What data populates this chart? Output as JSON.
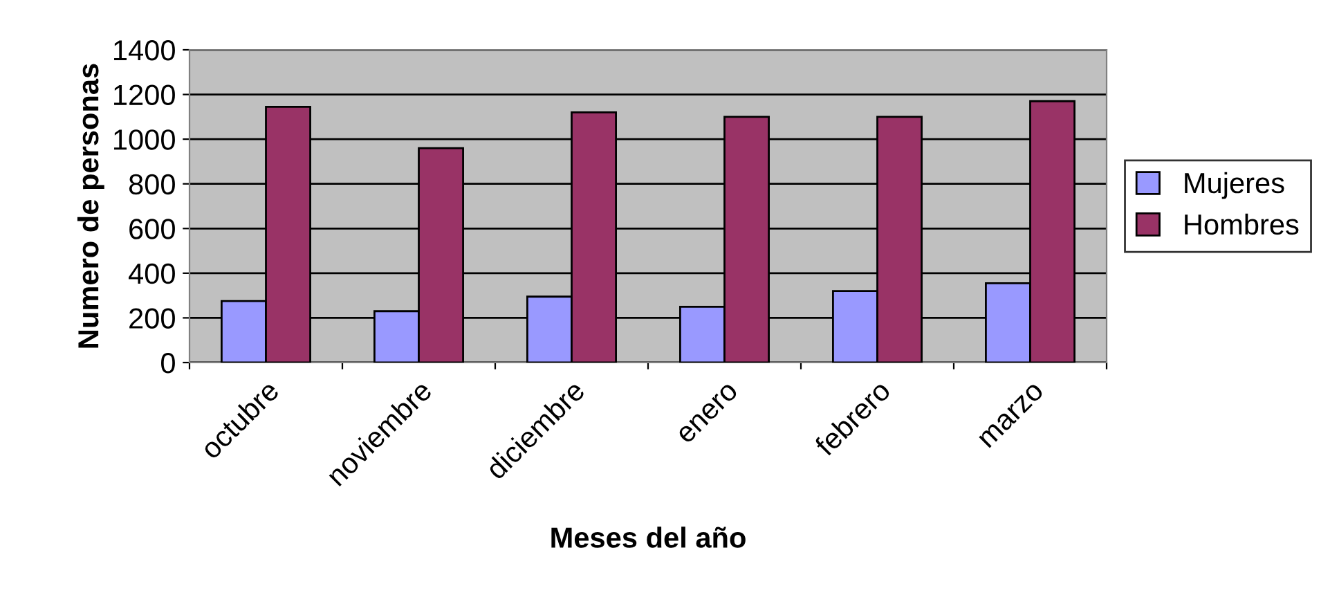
{
  "chart_data": {
    "type": "bar",
    "xlabel": "Meses del año",
    "ylabel": "Numero de personas",
    "categories": [
      "octubre",
      "noviembre",
      "diciembre",
      "enero",
      "febrero",
      "marzo"
    ],
    "series": [
      {
        "name": "Mujeres",
        "color": "#9999ff",
        "values": [
          275,
          230,
          295,
          250,
          320,
          355
        ]
      },
      {
        "name": "Hombres",
        "color": "#993366",
        "values": [
          1145,
          960,
          1120,
          1100,
          1100,
          1170
        ]
      }
    ],
    "ylim": [
      0,
      1400
    ],
    "yticks": [
      0,
      200,
      400,
      600,
      800,
      1000,
      1200,
      1400
    ],
    "grid": "y",
    "legend": "right"
  }
}
